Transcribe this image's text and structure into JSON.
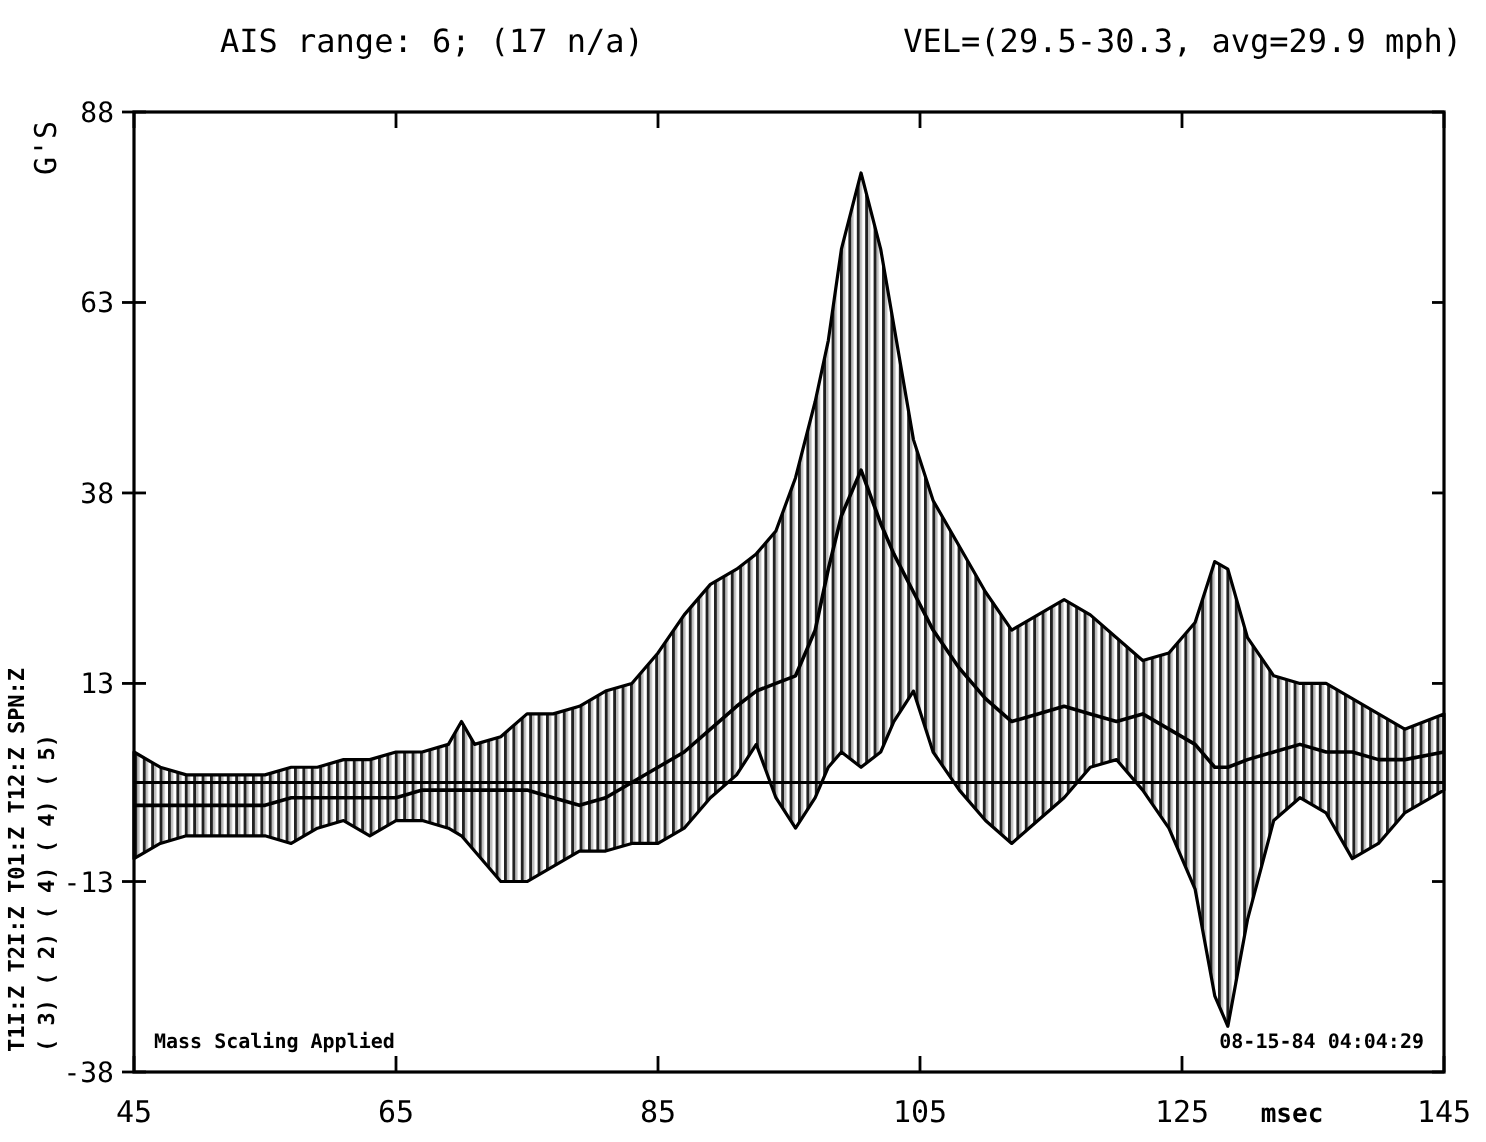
{
  "chart_data": {
    "type": "line",
    "title": "AIS range: 6; (17 n/a)",
    "subtitle": "VEL=(29.5-30.3, avg=29.9 mph)",
    "ylabel": "G'S",
    "xlabel": "msec",
    "x": [
      45,
      47,
      49,
      51,
      53,
      55,
      57,
      59,
      61,
      63,
      65,
      67,
      69,
      70,
      71,
      73,
      75,
      77,
      79,
      81,
      83,
      85,
      87,
      89,
      91,
      92.5,
      94,
      95.5,
      97,
      98,
      99,
      100.5,
      102,
      103,
      104.5,
      106,
      108,
      110,
      112,
      114,
      116,
      118,
      120,
      122,
      124,
      126,
      127.5,
      128.5,
      130,
      132,
      134,
      136,
      138,
      140,
      142,
      145
    ],
    "series": [
      {
        "color": "#000000",
        "values": [
          -3,
          -3,
          -3,
          -3,
          -3,
          -3,
          -2,
          -2,
          -2,
          -2,
          -2,
          -1,
          -1,
          -1,
          -1,
          -1,
          -1,
          -2,
          -3,
          -2,
          0,
          2,
          4,
          7,
          10,
          12,
          13,
          14,
          20,
          28,
          35,
          41,
          34,
          30,
          25,
          20,
          15,
          11,
          8,
          9,
          10,
          9,
          8,
          9,
          7,
          5,
          2,
          2,
          3,
          4,
          5,
          4,
          4,
          3,
          3,
          4
        ],
        "lower": [
          -10,
          -8,
          -7,
          -7,
          -7,
          -7,
          -8,
          -6,
          -5,
          -7,
          -5,
          -5,
          -6,
          -7,
          -9,
          -13,
          -13,
          -11,
          -9,
          -9,
          -8,
          -8,
          -6,
          -2,
          1,
          5,
          -2,
          -6,
          -2,
          2,
          4,
          2,
          4,
          8,
          12,
          4,
          -1,
          -5,
          -8,
          -5,
          -2,
          2,
          3,
          -1,
          -6,
          -14,
          -28,
          -32,
          -18,
          -5,
          -2,
          -4,
          -10,
          -8,
          -4,
          -1
        ],
        "upper": [
          4,
          2,
          1,
          1,
          1,
          1,
          2,
          2,
          3,
          3,
          4,
          4,
          5,
          8,
          5,
          6,
          9,
          9,
          10,
          12,
          13,
          17,
          22,
          26,
          28,
          30,
          33,
          40,
          50,
          58,
          70,
          80,
          70,
          60,
          45,
          37,
          31,
          25,
          20,
          22,
          24,
          22,
          19,
          16,
          17,
          21,
          29,
          28,
          19,
          14,
          13,
          13,
          11,
          9,
          7,
          9
        ]
      }
    ],
    "xlim": [
      45,
      145
    ],
    "xticks": [
      45,
      65,
      85,
      105,
      125,
      145
    ],
    "ylim": [
      -38,
      88
    ],
    "yticks": [
      -38,
      -13,
      13,
      38,
      63,
      88
    ],
    "ref_lines": [
      {
        "axis": "y",
        "value": 0,
        "color": "#000000"
      }
    ],
    "marker": "none",
    "line_style": "solid",
    "annotations": [
      "Mass Scaling Applied",
      "08-15-84 04:04:29",
      "T1I:Z T2I:Z T01:Z T12:Z SPN:Z",
      "( 3) ( 2) ( 4) ( 4) ( 5)"
    ]
  }
}
